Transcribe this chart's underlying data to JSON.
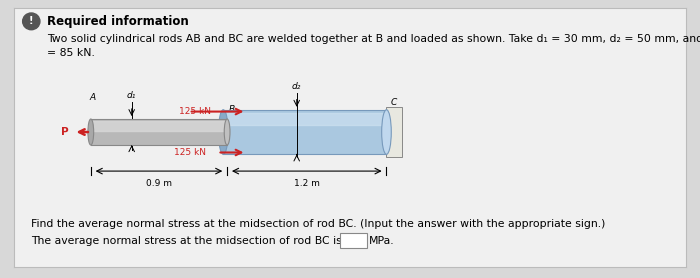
{
  "bg_color": "#d8d8d8",
  "card_color": "#f0f0f0",
  "title_text": "Required information",
  "body_text1": "Two solid cylindrical rods AB and BC are welded together at B and loaded as shown. Take d₁ = 30 mm, d₂ = 50 mm, and P",
  "body_text2": "= 85 kN.",
  "question_text1": "Find the average normal stress at the midsection of rod BC. (Input the answer with the appropriate sign.)",
  "question_text2": "The average normal stress at the midsection of rod BC is",
  "mpa_text": "MPa.",
  "rod_ab_color": "#b8b8b8",
  "rod_bc_color": "#aac8e0",
  "rod_end_color": "#e8e8e0",
  "arrow_color": "#cc2222",
  "force_label": "125 kN",
  "dim_09": "0.9 m",
  "dim_12": "1.2 m",
  "label_A": "A",
  "label_B": "B",
  "label_C": "C",
  "label_P": "P",
  "label_d1": "d₁",
  "label_d2": "d₂",
  "icon_color": "#555555",
  "font_size_title": 8.5,
  "font_size_body": 7.8,
  "font_size_small": 6.5,
  "font_size_diagram": 6.5
}
